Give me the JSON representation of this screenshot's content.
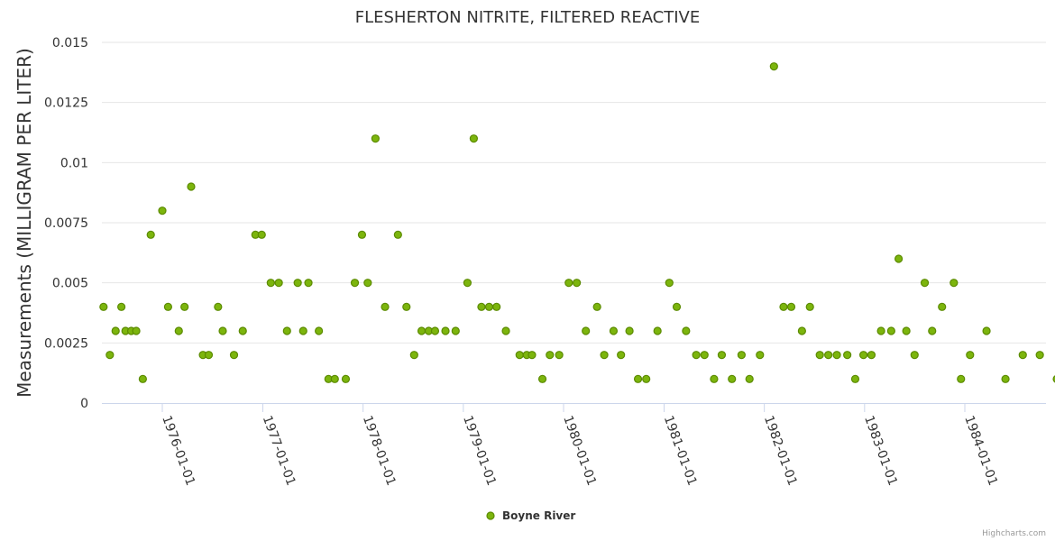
{
  "chart_data": {
    "type": "scatter",
    "title": "FLESHERTON NITRITE, FILTERED REACTIVE",
    "ylabel": "Measurements (MILLIGRAM PER LITER)",
    "xlabel": "",
    "ylim": [
      0,
      0.015
    ],
    "yticks": [
      "0",
      "0.0025",
      "0.005",
      "0.0075",
      "0.01",
      "0.0125",
      "0.015"
    ],
    "xticks": [
      "1976-01-01",
      "1977-01-01",
      "1978-01-01",
      "1979-01-01",
      "1980-01-01",
      "1981-01-01",
      "1982-01-01",
      "1983-01-01",
      "1984-01-01"
    ],
    "grid": true,
    "legend_position": "bottom-center",
    "series": [
      {
        "name": "Boyne River",
        "color": "#7cb50d",
        "points": [
          [
            "1975-06-01",
            0.004
          ],
          [
            "1975-06-24",
            0.002
          ],
          [
            "1975-07-15",
            0.003
          ],
          [
            "1975-08-05",
            0.004
          ],
          [
            "1975-08-20",
            0.003
          ],
          [
            "1975-09-10",
            0.003
          ],
          [
            "1975-09-28",
            0.003
          ],
          [
            "1975-10-22",
            0.001
          ],
          [
            "1975-11-20",
            0.007
          ],
          [
            "1976-01-01",
            0.008
          ],
          [
            "1976-01-22",
            0.004
          ],
          [
            "1976-03-01",
            0.003
          ],
          [
            "1976-03-22",
            0.004
          ],
          [
            "1976-04-15",
            0.009
          ],
          [
            "1976-05-28",
            0.002
          ],
          [
            "1976-06-18",
            0.002
          ],
          [
            "1976-07-22",
            0.004
          ],
          [
            "1976-08-08",
            0.003
          ],
          [
            "1976-09-18",
            0.002
          ],
          [
            "1976-10-20",
            0.003
          ],
          [
            "1976-12-05",
            0.007
          ],
          [
            "1976-12-28",
            0.007
          ],
          [
            "1977-01-30",
            0.005
          ],
          [
            "1977-02-28",
            0.005
          ],
          [
            "1977-03-30",
            0.003
          ],
          [
            "1977-05-08",
            0.005
          ],
          [
            "1977-05-28",
            0.003
          ],
          [
            "1977-06-16",
            0.005
          ],
          [
            "1977-07-24",
            0.003
          ],
          [
            "1977-08-28",
            0.001
          ],
          [
            "1977-09-20",
            0.001
          ],
          [
            "1977-10-30",
            0.001
          ],
          [
            "1977-12-02",
            0.005
          ],
          [
            "1977-12-28",
            0.007
          ],
          [
            "1978-01-18",
            0.005
          ],
          [
            "1978-02-15",
            0.011
          ],
          [
            "1978-03-22",
            0.004
          ],
          [
            "1978-05-08",
            0.007
          ],
          [
            "1978-06-08",
            0.004
          ],
          [
            "1978-07-06",
            0.002
          ],
          [
            "1978-08-02",
            0.003
          ],
          [
            "1978-08-28",
            0.003
          ],
          [
            "1978-09-20",
            0.003
          ],
          [
            "1978-10-28",
            0.003
          ],
          [
            "1978-12-04",
            0.003
          ],
          [
            "1979-01-16",
            0.005
          ],
          [
            "1979-02-08",
            0.011
          ],
          [
            "1979-03-08",
            0.004
          ],
          [
            "1979-04-05",
            0.004
          ],
          [
            "1979-05-02",
            0.004
          ],
          [
            "1979-06-05",
            0.003
          ],
          [
            "1979-07-25",
            0.002
          ],
          [
            "1979-08-20",
            0.002
          ],
          [
            "1979-09-08",
            0.002
          ],
          [
            "1979-10-16",
            0.001
          ],
          [
            "1979-11-12",
            0.002
          ],
          [
            "1979-12-16",
            0.002
          ],
          [
            "1980-01-20",
            0.005
          ],
          [
            "1980-02-18",
            0.005
          ],
          [
            "1980-03-22",
            0.003
          ],
          [
            "1980-05-02",
            0.004
          ],
          [
            "1980-05-28",
            0.002
          ],
          [
            "1980-07-01",
            0.003
          ],
          [
            "1980-07-28",
            0.002
          ],
          [
            "1980-08-28",
            0.003
          ],
          [
            "1980-09-28",
            0.001
          ],
          [
            "1980-10-28",
            0.001
          ],
          [
            "1980-12-08",
            0.003
          ],
          [
            "1981-01-20",
            0.005
          ],
          [
            "1981-02-16",
            0.004
          ],
          [
            "1981-03-22",
            0.003
          ],
          [
            "1981-04-28",
            0.002
          ],
          [
            "1981-05-28",
            0.002
          ],
          [
            "1981-07-02",
            0.001
          ],
          [
            "1981-07-30",
            0.002
          ],
          [
            "1981-09-05",
            0.001
          ],
          [
            "1981-10-10",
            0.002
          ],
          [
            "1981-11-08",
            0.001
          ],
          [
            "1981-12-16",
            0.002
          ],
          [
            "1982-02-05",
            0.014
          ],
          [
            "1982-03-12",
            0.004
          ],
          [
            "1982-04-09",
            0.004
          ],
          [
            "1982-05-18",
            0.003
          ],
          [
            "1982-06-16",
            0.004
          ],
          [
            "1982-07-22",
            0.002
          ],
          [
            "1982-08-22",
            0.002
          ],
          [
            "1982-09-22",
            0.002
          ],
          [
            "1982-10-30",
            0.002
          ],
          [
            "1982-11-28",
            0.001
          ],
          [
            "1982-12-28",
            0.002
          ],
          [
            "1983-01-26",
            0.002
          ],
          [
            "1983-03-02",
            0.003
          ],
          [
            "1983-04-08",
            0.003
          ],
          [
            "1983-05-05",
            0.006
          ],
          [
            "1983-06-02",
            0.003
          ],
          [
            "1983-07-02",
            0.002
          ],
          [
            "1983-08-08",
            0.005
          ],
          [
            "1983-09-04",
            0.003
          ],
          [
            "1983-10-10",
            0.004
          ],
          [
            "1983-11-22",
            0.005
          ],
          [
            "1983-12-18",
            0.001
          ],
          [
            "1984-01-20",
            0.002
          ],
          [
            "1984-03-20",
            0.003
          ],
          [
            "1984-05-28",
            0.001
          ],
          [
            "1984-07-30",
            0.002
          ],
          [
            "1984-09-30",
            0.002
          ],
          [
            "1984-12-01",
            0.001
          ]
        ]
      }
    ]
  },
  "credits": "Highcharts.com"
}
